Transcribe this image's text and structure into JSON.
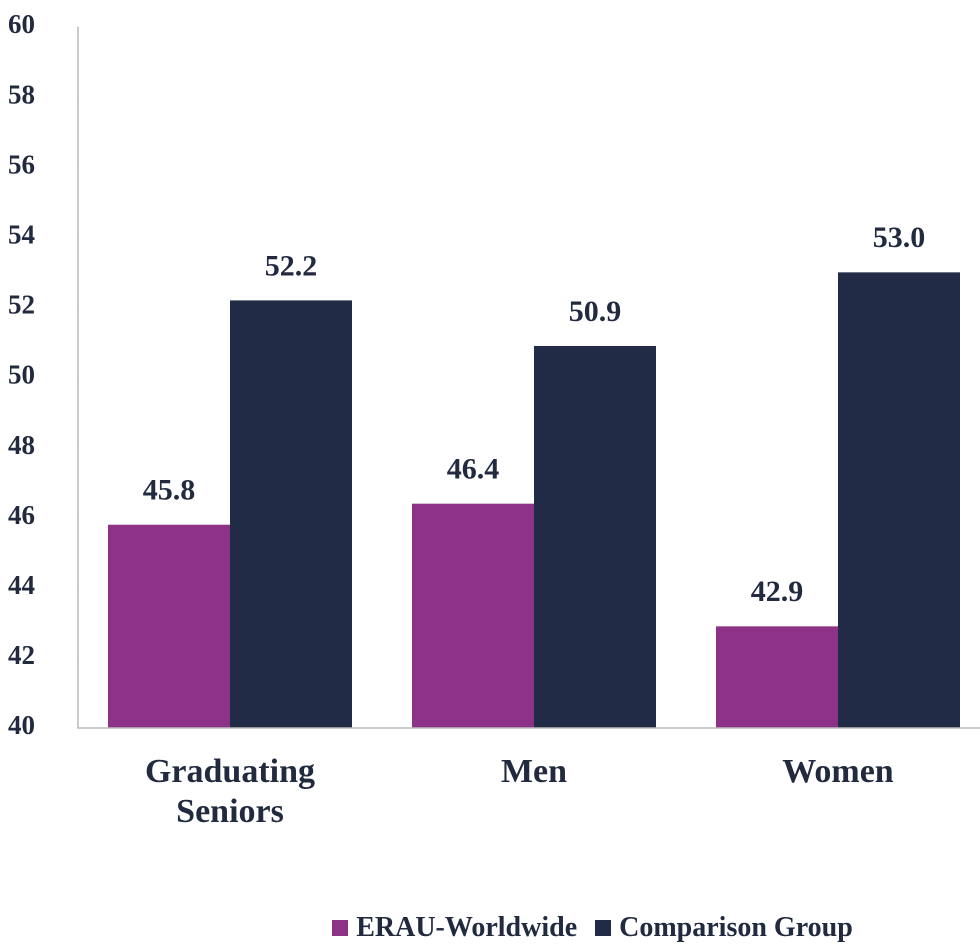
{
  "chart_data": {
    "type": "bar",
    "categories": [
      "Graduating Seniors",
      "Men",
      "Women"
    ],
    "series": [
      {
        "name": "ERAU-Worldwide",
        "color": "#8e3288",
        "values": [
          45.8,
          46.4,
          42.9
        ],
        "value_labels": [
          "45.8",
          "46.4",
          "42.9"
        ]
      },
      {
        "name": "Comparison Group",
        "color": "#212b45",
        "values": [
          52.2,
          50.9,
          53.0
        ],
        "value_labels": [
          "52.2",
          "50.9",
          "53.0"
        ]
      }
    ],
    "ylim": [
      40,
      60
    ],
    "yticks": [
      40,
      42,
      44,
      46,
      48,
      50,
      52,
      54,
      56,
      58,
      60
    ],
    "grid": false,
    "legend": "bottom"
  }
}
